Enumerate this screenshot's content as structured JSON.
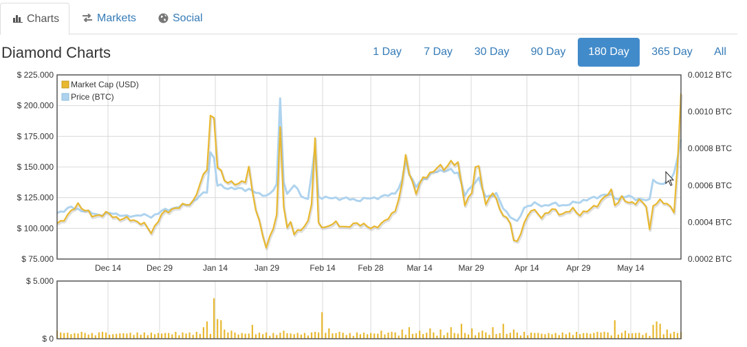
{
  "tabs": [
    {
      "label": "Charts",
      "icon": "bar-chart-icon",
      "active": true
    },
    {
      "label": "Markets",
      "icon": "exchange-arrows-icon",
      "active": false
    },
    {
      "label": "Social",
      "icon": "globe-icon",
      "active": false
    }
  ],
  "page_title": "Diamond Charts",
  "ranges": [
    {
      "label": "1 Day",
      "active": false
    },
    {
      "label": "7 Day",
      "active": false
    },
    {
      "label": "30 Day",
      "active": false
    },
    {
      "label": "90 Day",
      "active": false
    },
    {
      "label": "180 Day",
      "active": true
    },
    {
      "label": "365 Day",
      "active": false
    },
    {
      "label": "All",
      "active": false
    }
  ],
  "colors": {
    "market_cap": "#e8b830",
    "price": "#aed3ee",
    "volume": "#e8b830",
    "grid": "#d8d8d8",
    "active_button": "#428bca",
    "link": "#337ab7"
  },
  "chart_data": [
    {
      "type": "line",
      "legend": [
        "Market Cap (USD)",
        "Price (BTC)"
      ],
      "legend_position": "top-left",
      "grid": true,
      "x_ticks": [
        "Dec 14",
        "Dec 29",
        "Jan 14",
        "Jan 29",
        "Feb 14",
        "Feb 28",
        "Mar 14",
        "Mar 29",
        "Apr 14",
        "Apr 29",
        "May 14"
      ],
      "y_left_ticks": [
        "$ 225.000",
        "$ 200.000",
        "$ 175.000",
        "$ 150.000",
        "$ 125.000",
        "$ 100.000",
        "$ 75.000"
      ],
      "y_left_range": [
        75000,
        225000
      ],
      "y_right_ticks": [
        "0.0012 BTC",
        "0.0010 BTC",
        "0.0008 BTC",
        "0.0006 BTC",
        "0.0004 BTC",
        "0.0002 BTC"
      ],
      "y_right_range": [
        0.0002,
        0.0012
      ],
      "days": 180,
      "series": [
        {
          "name": "Market Cap (USD)",
          "axis": "left",
          "anchors": [
            [
              0,
              104000
            ],
            [
              3,
              110000
            ],
            [
              6,
              120000
            ],
            [
              10,
              110000
            ],
            [
              14,
              112000
            ],
            [
              18,
              108000
            ],
            [
              22,
              107000
            ],
            [
              25,
              103000
            ],
            [
              27,
              97000
            ],
            [
              30,
              111000
            ],
            [
              33,
              116000
            ],
            [
              36,
              118000
            ],
            [
              39,
              122000
            ],
            [
              41,
              135000
            ],
            [
              43,
              150000
            ],
            [
              44,
              192000
            ],
            [
              45,
              190000
            ],
            [
              46,
              150000
            ],
            [
              48,
              140000
            ],
            [
              52,
              135000
            ],
            [
              54,
              140000
            ],
            [
              55,
              150000
            ],
            [
              56,
              130000
            ],
            [
              57,
              115000
            ],
            [
              59,
              95000
            ],
            [
              60,
              85000
            ],
            [
              62,
              100000
            ],
            [
              63,
              110000
            ],
            [
              64,
              182000
            ],
            [
              65,
              120000
            ],
            [
              66,
              100000
            ],
            [
              67,
              105000
            ],
            [
              68,
              95000
            ],
            [
              70,
              100000
            ],
            [
              72,
              105000
            ],
            [
              73,
              120000
            ],
            [
              74,
              172000
            ],
            [
              75,
              105000
            ],
            [
              77,
              100000
            ],
            [
              80,
              105000
            ],
            [
              83,
              100000
            ],
            [
              86,
              105000
            ],
            [
              90,
              100000
            ],
            [
              94,
              105000
            ],
            [
              97,
              115000
            ],
            [
              99,
              135000
            ],
            [
              100,
              160000
            ],
            [
              101,
              145000
            ],
            [
              103,
              130000
            ],
            [
              105,
              140000
            ],
            [
              107,
              145000
            ],
            [
              109,
              150000
            ],
            [
              111,
              148000
            ],
            [
              113,
              155000
            ],
            [
              115,
              152000
            ],
            [
              116,
              135000
            ],
            [
              117,
              120000
            ],
            [
              119,
              130000
            ],
            [
              120,
              150000
            ],
            [
              121,
              148000
            ],
            [
              123,
              120000
            ],
            [
              125,
              130000
            ],
            [
              127,
              115000
            ],
            [
              128,
              112000
            ],
            [
              130,
              105000
            ],
            [
              131,
              90000
            ],
            [
              132,
              88000
            ],
            [
              134,
              105000
            ],
            [
              136,
              115000
            ],
            [
              139,
              110000
            ],
            [
              142,
              115000
            ],
            [
              145,
              112000
            ],
            [
              148,
              115000
            ],
            [
              150,
              112000
            ],
            [
              153,
              115000
            ],
            [
              155,
              120000
            ],
            [
              157,
              125000
            ],
            [
              159,
              130000
            ],
            [
              160,
              120000
            ],
            [
              162,
              125000
            ],
            [
              164,
              120000
            ],
            [
              167,
              123000
            ],
            [
              169,
              118000
            ],
            [
              170,
              98000
            ],
            [
              171,
              120000
            ],
            [
              173,
              122000
            ],
            [
              176,
              118000
            ],
            [
              177,
              115000
            ],
            [
              178,
              150000
            ],
            [
              179,
              210000
            ]
          ]
        },
        {
          "name": "Price (BTC)",
          "axis": "right",
          "anchors": [
            [
              0,
              0.00045
            ],
            [
              4,
              0.00048
            ],
            [
              8,
              0.00046
            ],
            [
              12,
              0.00044
            ],
            [
              16,
              0.00045
            ],
            [
              20,
              0.00043
            ],
            [
              24,
              0.00044
            ],
            [
              27,
              0.00043
            ],
            [
              30,
              0.00046
            ],
            [
              34,
              0.00048
            ],
            [
              38,
              0.0005
            ],
            [
              41,
              0.00054
            ],
            [
              43,
              0.00057
            ],
            [
              44,
              0.00078
            ],
            [
              45,
              0.00075
            ],
            [
              46,
              0.0006
            ],
            [
              48,
              0.00059
            ],
            [
              52,
              0.00058
            ],
            [
              55,
              0.00058
            ],
            [
              58,
              0.00055
            ],
            [
              61,
              0.00055
            ],
            [
              63,
              0.0006
            ],
            [
              64,
              0.00107
            ],
            [
              65,
              0.00063
            ],
            [
              66,
              0.00055
            ],
            [
              68,
              0.0006
            ],
            [
              70,
              0.00055
            ],
            [
              72,
              0.00052
            ],
            [
              74,
              0.0008
            ],
            [
              75,
              0.00054
            ],
            [
              78,
              0.00053
            ],
            [
              82,
              0.00053
            ],
            [
              86,
              0.00052
            ],
            [
              90,
              0.00053
            ],
            [
              94,
              0.00054
            ],
            [
              97,
              0.00056
            ],
            [
              99,
              0.00062
            ],
            [
              100,
              0.00074
            ],
            [
              101,
              0.00066
            ],
            [
              103,
              0.0006
            ],
            [
              106,
              0.00064
            ],
            [
              108,
              0.00068
            ],
            [
              110,
              0.00067
            ],
            [
              113,
              0.00069
            ],
            [
              115,
              0.00066
            ],
            [
              117,
              0.00055
            ],
            [
              119,
              0.0006
            ],
            [
              121,
              0.00063
            ],
            [
              123,
              0.00054
            ],
            [
              126,
              0.00055
            ],
            [
              128,
              0.00048
            ],
            [
              130,
              0.00043
            ],
            [
              132,
              0.0004
            ],
            [
              134,
              0.00048
            ],
            [
              137,
              0.0005
            ],
            [
              140,
              0.00049
            ],
            [
              143,
              0.0005
            ],
            [
              146,
              0.00049
            ],
            [
              149,
              0.00051
            ],
            [
              152,
              0.00052
            ],
            [
              155,
              0.00054
            ],
            [
              158,
              0.00055
            ],
            [
              161,
              0.00053
            ],
            [
              164,
              0.00054
            ],
            [
              168,
              0.00052
            ],
            [
              170,
              0.00052
            ],
            [
              171,
              0.00064
            ],
            [
              173,
              0.0006
            ],
            [
              176,
              0.00063
            ],
            [
              177,
              0.00068
            ],
            [
              178,
              0.00074
            ],
            [
              179,
              0.00085
            ]
          ]
        }
      ]
    },
    {
      "type": "bar",
      "name": "Volume",
      "y_ticks": [
        "$ 5.000",
        "$ 0"
      ],
      "y_range": [
        0,
        5000
      ],
      "bars": [
        [
          0,
          700
        ],
        [
          2,
          500
        ],
        [
          4,
          400
        ],
        [
          7,
          600
        ],
        [
          10,
          500
        ],
        [
          13,
          600
        ],
        [
          16,
          400
        ],
        [
          20,
          450
        ],
        [
          24,
          350
        ],
        [
          28,
          400
        ],
        [
          31,
          500
        ],
        [
          34,
          600
        ],
        [
          37,
          450
        ],
        [
          40,
          600
        ],
        [
          42,
          1000
        ],
        [
          43,
          1500
        ],
        [
          45,
          3500
        ],
        [
          46,
          1700
        ],
        [
          47,
          1600
        ],
        [
          48,
          800
        ],
        [
          50,
          700
        ],
        [
          53,
          500
        ],
        [
          56,
          1200
        ],
        [
          59,
          400
        ],
        [
          62,
          500
        ],
        [
          65,
          700
        ],
        [
          68,
          400
        ],
        [
          71,
          500
        ],
        [
          74,
          600
        ],
        [
          76,
          2300
        ],
        [
          78,
          900
        ],
        [
          81,
          600
        ],
        [
          84,
          500
        ],
        [
          87,
          400
        ],
        [
          90,
          500
        ],
        [
          93,
          700
        ],
        [
          96,
          600
        ],
        [
          99,
          800
        ],
        [
          101,
          1000
        ],
        [
          104,
          700
        ],
        [
          107,
          900
        ],
        [
          110,
          800
        ],
        [
          113,
          1000
        ],
        [
          116,
          1300
        ],
        [
          119,
          900
        ],
        [
          122,
          700
        ],
        [
          125,
          1000
        ],
        [
          128,
          1300
        ],
        [
          131,
          800
        ],
        [
          134,
          600
        ],
        [
          137,
          500
        ],
        [
          140,
          400
        ],
        [
          143,
          500
        ],
        [
          146,
          400
        ],
        [
          149,
          600
        ],
        [
          152,
          500
        ],
        [
          155,
          600
        ],
        [
          157,
          600
        ],
        [
          160,
          1600
        ],
        [
          163,
          700
        ],
        [
          166,
          500
        ],
        [
          169,
          500
        ],
        [
          171,
          1200
        ],
        [
          172,
          1500
        ],
        [
          173,
          1300
        ],
        [
          175,
          800
        ],
        [
          177,
          600
        ],
        [
          179,
          600
        ]
      ]
    }
  ]
}
